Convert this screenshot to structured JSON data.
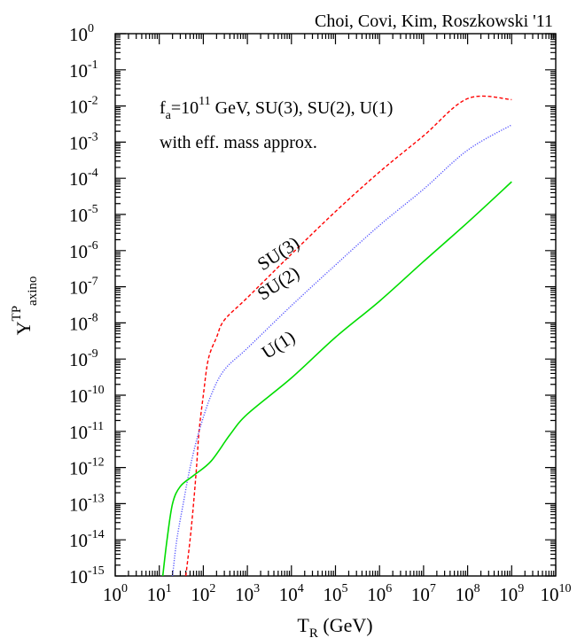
{
  "chart_data": {
    "type": "line",
    "credit": "Choi, Covi, Kim, Roszkowski '11",
    "annotation": {
      "line1": {
        "f": "f",
        "sub": "a",
        "eq": "=10",
        "sup": "11",
        "rest": " GeV, SU(3), SU(2), U(1)"
      },
      "line2": "with eff. mass approx."
    },
    "xlabel": {
      "main": "T",
      "sub": "R",
      "rest": " (GeV)"
    },
    "ylabel": {
      "main": "Y",
      "sup": "TP",
      "sub": "axino"
    },
    "xscale": "log",
    "yscale": "log",
    "xlim": [
      1,
      10000000000
    ],
    "ylim": [
      1e-15,
      1
    ],
    "x_tick_exponents": [
      0,
      1,
      2,
      3,
      4,
      5,
      6,
      7,
      8,
      9,
      10
    ],
    "y_tick_exponents": [
      0,
      -1,
      -2,
      -3,
      -4,
      -5,
      -6,
      -7,
      -8,
      -9,
      -10,
      -11,
      -12,
      -13,
      -14,
      -15
    ],
    "tick_base": "10",
    "grid": false,
    "series": [
      {
        "name": "SU(3)",
        "color": "#ff0000",
        "dash": "dashed",
        "points": [
          [
            40,
            1e-15
          ],
          [
            50,
            1e-14
          ],
          [
            60,
            1e-13
          ],
          [
            70,
            1e-12
          ],
          [
            80,
            1e-11
          ],
          [
            100,
            1e-10
          ],
          [
            130,
            1e-09
          ],
          [
            200,
            4e-09
          ],
          [
            300,
            1.2e-08
          ],
          [
            1000,
            5e-08
          ],
          [
            10000,
            8e-07
          ],
          [
            100000,
            1.2e-05
          ],
          [
            1000000,
            0.00015
          ],
          [
            10000000,
            0.0015
          ],
          [
            100000000,
            0.016
          ],
          [
            1000000000,
            0.015
          ]
        ]
      },
      {
        "name": "SU(2)",
        "color": "#5555ff",
        "dash": "dotted",
        "points": [
          [
            20,
            1e-15
          ],
          [
            25,
            1e-14
          ],
          [
            35,
            1e-13
          ],
          [
            50,
            1e-12
          ],
          [
            80,
            1e-11
          ],
          [
            150,
            1e-10
          ],
          [
            300,
            5e-10
          ],
          [
            1000,
            2e-09
          ],
          [
            10000,
            3e-08
          ],
          [
            100000,
            4e-07
          ],
          [
            1000000,
            5e-06
          ],
          [
            10000000,
            5e-05
          ],
          [
            100000000,
            0.0006
          ],
          [
            1000000000,
            0.003
          ]
        ]
      },
      {
        "name": "U(1)",
        "color": "#00dd00",
        "dash": "solid",
        "points": [
          [
            12,
            1e-15
          ],
          [
            15,
            1e-14
          ],
          [
            20,
            1e-13
          ],
          [
            30,
            3e-13
          ],
          [
            60,
            6e-13
          ],
          [
            150,
            1.5e-12
          ],
          [
            400,
            8e-12
          ],
          [
            1000,
            3e-11
          ],
          [
            10000,
            3e-10
          ],
          [
            100000,
            4e-09
          ],
          [
            1000000,
            4e-08
          ],
          [
            10000000,
            5e-07
          ],
          [
            100000000,
            6e-06
          ],
          [
            1000000000,
            8e-05
          ]
        ]
      }
    ],
    "curve_labels": [
      {
        "series": "SU(3)",
        "text": "SU(3)",
        "x": 6000,
        "y": 6e-07,
        "angle": -33
      },
      {
        "series": "SU(2)",
        "text": "SU(2)",
        "x": 6000,
        "y": 9e-08,
        "angle": -33
      },
      {
        "series": "U(1)",
        "text": "U(1)",
        "x": 6000,
        "y": 1.8e-09,
        "angle": -33
      }
    ]
  }
}
